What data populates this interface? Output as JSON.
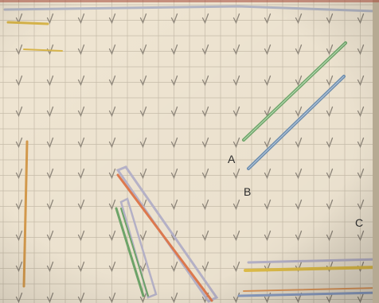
{
  "labels": {
    "a": "A",
    "b": "B",
    "c": "C"
  },
  "colors": {
    "board": "#efe5d2",
    "grid": "#c7bcaa",
    "peg": "#8f877b",
    "band_green": "#6fa66a",
    "band_blue": "#6e8fb0",
    "band_orange": "#e07a4e",
    "band_yellow": "#e2c04a",
    "band_lavender": "#b7b3c9"
  },
  "icons": [
    "nail-peg-icon"
  ]
}
